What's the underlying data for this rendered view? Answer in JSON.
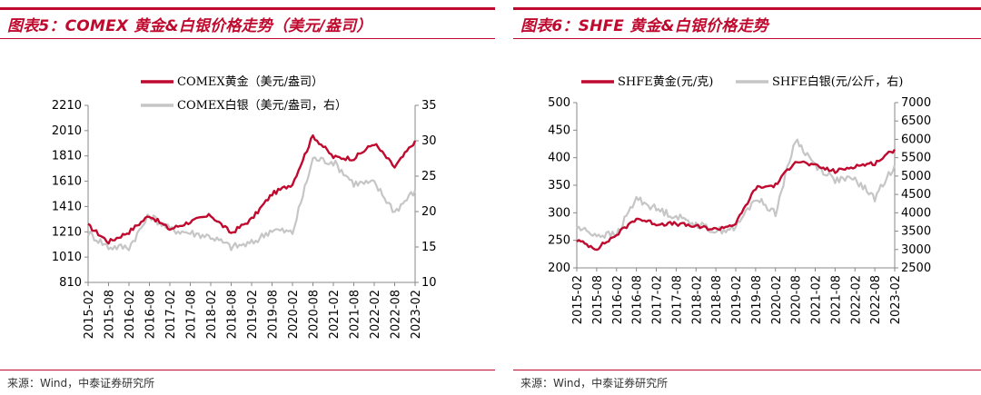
{
  "charts_meta": {
    "left": {
      "title": "图表5：COMEX 黄金&白银价格走势（美元/盎司）",
      "source": "来源：Wind，中泰证券研究所"
    },
    "right": {
      "title": "图表6：SHFE 黄金&白银价格走势",
      "source": "来源：Wind，中泰证券研究所"
    }
  },
  "colors": {
    "gold": "#c0092e",
    "silver": "#c6c6c6",
    "accent": "#c0092e"
  },
  "chart_data": [
    {
      "type": "line",
      "title": "图表5：COMEX 黄金&白银价格走势（美元/盎司）",
      "xlabel": "",
      "ylabel": "",
      "categories": [
        "2015-02",
        "2015-08",
        "2016-02",
        "2016-08",
        "2017-02",
        "2017-08",
        "2018-02",
        "2018-08",
        "2019-02",
        "2019-08",
        "2020-02",
        "2020-08",
        "2021-02",
        "2021-08",
        "2022-02",
        "2022-08",
        "2023-02"
      ],
      "y_left": {
        "ylim": [
          810,
          2210
        ],
        "ticks": [
          810,
          1010,
          1210,
          1410,
          1610,
          1810,
          2010,
          2210
        ]
      },
      "y_right": {
        "ylim": [
          10,
          35
        ],
        "ticks": [
          10,
          15,
          20,
          25,
          30,
          35
        ]
      },
      "series": [
        {
          "name": "COMEX黄金（美元/盎司）",
          "axis": "left",
          "color": "#c0092e",
          "values": [
            1260,
            1130,
            1210,
            1340,
            1230,
            1290,
            1340,
            1200,
            1310,
            1510,
            1590,
            1970,
            1800,
            1790,
            1910,
            1720,
            1930
          ]
        },
        {
          "name": "COMEX白银（美元/盎司，右）",
          "axis": "right",
          "color": "#c6c6c6",
          "values": [
            17.0,
            15.0,
            15.0,
            19.5,
            17.5,
            17.0,
            16.5,
            15.0,
            15.5,
            17.5,
            17.0,
            27.5,
            27.0,
            24.0,
            24.0,
            20.0,
            23.0
          ]
        }
      ],
      "legend": "top-center",
      "grid": false
    },
    {
      "type": "line",
      "title": "图表6：SHFE 黄金&白银价格走势",
      "xlabel": "",
      "ylabel": "",
      "categories": [
        "2015-02",
        "2015-08",
        "2016-02",
        "2016-08",
        "2017-02",
        "2017-08",
        "2018-02",
        "2018-08",
        "2019-02",
        "2019-08",
        "2020-02",
        "2020-08",
        "2021-02",
        "2021-08",
        "2022-02",
        "2022-08",
        "2023-02"
      ],
      "y_left": {
        "ylim": [
          200,
          500
        ],
        "ticks": [
          200,
          250,
          300,
          350,
          400,
          450,
          500
        ]
      },
      "y_right": {
        "ylim": [
          2500,
          7000
        ],
        "ticks": [
          2500,
          3000,
          3500,
          4000,
          4500,
          5000,
          5500,
          6000,
          6500,
          7000
        ]
      },
      "series": [
        {
          "name": "SHFE黄金(元/克)",
          "axis": "left",
          "color": "#c0092e",
          "values": [
            250,
            235,
            260,
            290,
            280,
            280,
            275,
            270,
            280,
            345,
            350,
            395,
            385,
            375,
            385,
            390,
            415
          ]
        },
        {
          "name": "SHFE白银(元/公斤，右)",
          "axis": "right",
          "color": "#c6c6c6",
          "values": [
            3600,
            3400,
            3400,
            4400,
            4100,
            3900,
            3700,
            3500,
            3600,
            4400,
            4000,
            6000,
            5300,
            4900,
            4900,
            4400,
            5300
          ]
        }
      ],
      "legend": "top-center",
      "grid": false
    }
  ]
}
